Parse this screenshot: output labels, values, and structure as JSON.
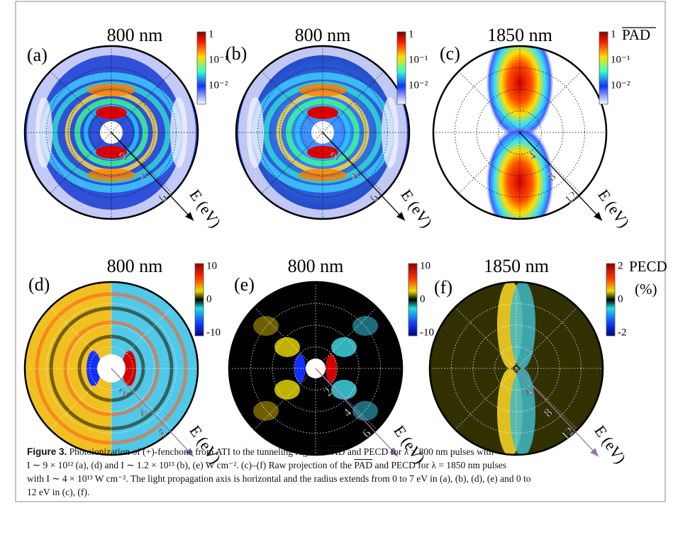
{
  "panels": [
    {
      "label": "(a)",
      "title": "800 nm",
      "colorbar": {
        "ticks": [
          "1",
          "10⁻¹",
          "10⁻²"
        ]
      },
      "radial_ticks": [
        "2",
        "4",
        "6"
      ],
      "axis_label": "E (eV)"
    },
    {
      "label": "(b)",
      "title": "800 nm",
      "colorbar": {
        "ticks": [
          "1",
          "10⁻¹",
          "10⁻²"
        ]
      },
      "radial_ticks": [
        "2",
        "4",
        "6"
      ],
      "axis_label": "E (eV)"
    },
    {
      "label": "(c)",
      "title": "1850 nm",
      "colorbar": {
        "ticks": [
          "1",
          "10⁻¹",
          "10⁻²"
        ],
        "label": "PAD"
      },
      "radial_ticks": [
        "4",
        "8",
        "12"
      ],
      "axis_label": "E (eV)"
    },
    {
      "label": "(d)",
      "title": "800 nm",
      "colorbar": {
        "ticks": [
          "10",
          "0",
          "-10"
        ]
      },
      "radial_ticks": [
        "2",
        "4",
        "6"
      ],
      "axis_label": "E (eV)"
    },
    {
      "label": "(e)",
      "title": "800 nm",
      "colorbar": {
        "ticks": [
          "10",
          "0",
          "-10"
        ]
      },
      "radial_ticks": [
        "2",
        "4",
        "6"
      ],
      "axis_label": "E (eV)"
    },
    {
      "label": "(f)",
      "title": "1850 nm",
      "colorbar": {
        "ticks": [
          "2",
          "0",
          "-2"
        ],
        "label": "PECD",
        "unit": "(%)"
      },
      "radial_ticks": [
        "4",
        "8",
        "12"
      ],
      "axis_label": "E (eV)"
    }
  ],
  "caption": [
    [
      {
        "text": "Figure 3.",
        "format": "bold"
      },
      {
        "text": " Photoionization of (+)-fenchone from ATI to the tunneling regime. "
      },
      {
        "text": "PAD",
        "format": "overline"
      },
      {
        "text": " and PECD for λ = 800 nm pulses with"
      }
    ],
    [
      {
        "text": "I ∼ 9 × 10¹² (a), (d) and I ∼ 1.2 × 10¹³ (b), (e) W cm⁻². (c)–(f) Raw projection of the "
      },
      {
        "text": "PAD",
        "format": "overline"
      },
      {
        "text": " and PECD for λ = 1850 nm pulses"
      }
    ],
    [
      {
        "text": "with I ∼ 4 × 10¹³ W cm⁻². The light propagation axis is horizontal and the radius extends from 0 to 7 eV in (a), (b), (d), (e) and 0 to"
      }
    ],
    [
      {
        "text": "12 eV in (c), (f)."
      }
    ]
  ]
}
